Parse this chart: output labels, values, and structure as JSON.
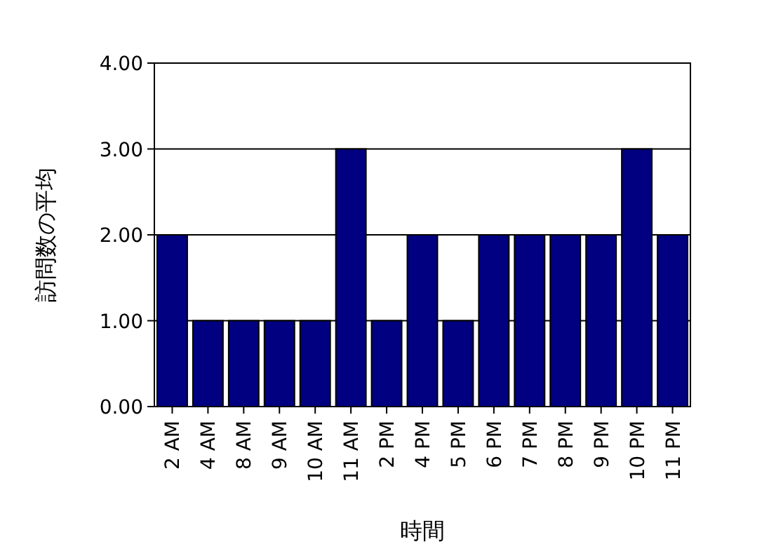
{
  "chart_data": {
    "type": "bar",
    "xlabel": "時間",
    "ylabel": "訪問数の平均",
    "categories": [
      "2 AM",
      "4 AM",
      "8 AM",
      "9 AM",
      "10 AM",
      "11 AM",
      "2 PM",
      "4 PM",
      "5 PM",
      "6 PM",
      "7 PM",
      "8 PM",
      "9 PM",
      "10 PM",
      "11 PM"
    ],
    "values": [
      2,
      1,
      1,
      1,
      1,
      3,
      1,
      2,
      1,
      2,
      2,
      2,
      2,
      3,
      2
    ],
    "color": "#000080",
    "ylim": [
      0,
      4
    ],
    "yticks": [
      {
        "value": 0,
        "label": "0.00"
      },
      {
        "value": 1,
        "label": "1.00"
      },
      {
        "value": 2,
        "label": "2.00"
      },
      {
        "value": 3,
        "label": "3.00"
      },
      {
        "value": 4,
        "label": "4.00"
      }
    ],
    "grid": "y"
  }
}
